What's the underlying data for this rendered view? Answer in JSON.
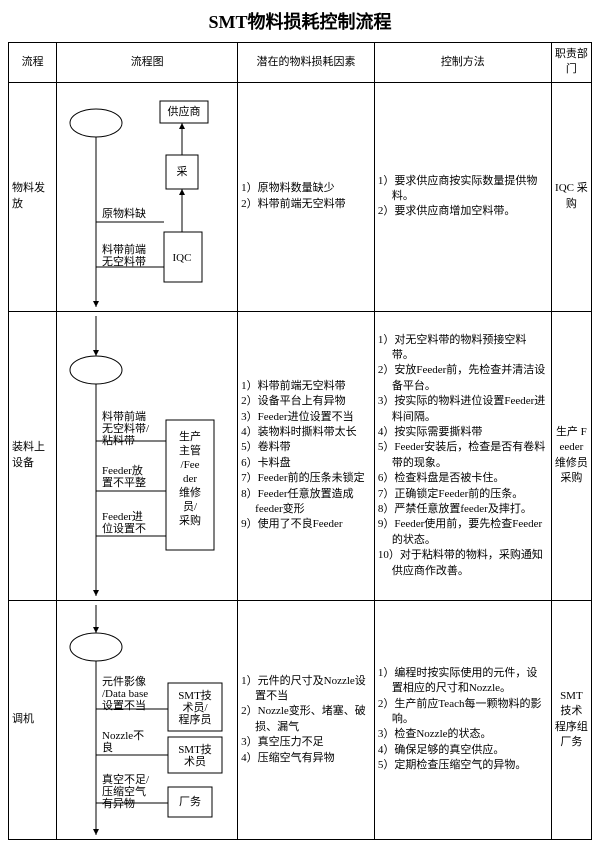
{
  "document": {
    "title": "SMT物料损耗控制流程",
    "columns": [
      "流程",
      "流程图",
      "潜在的物料损耗因素",
      "控制方法",
      "职责部门"
    ],
    "rows": [
      {
        "process": "物料发放",
        "factors": [
          "1）原物料数量缺少",
          "2）料带前端无空料带"
        ],
        "controls": [
          "1）要求供应商按实际数量提供物料。",
          "2）要求供应商增加空料带。"
        ],
        "dept": "IQC 采购",
        "flow": {
          "boxes": {
            "supplier": "供应商",
            "buy": "采",
            "iqc": "IQC"
          },
          "labels": {
            "missing": "原物料缺",
            "noempty": "料带前端无空料带"
          }
        }
      },
      {
        "process": "装料上设备",
        "factors": [
          "1）料带前端无空料带",
          "2）设备平台上有异物",
          "3）Feeder进位设置不当",
          "4）装物料时撕料带太长",
          "5）卷料带",
          "6）卡料盘",
          "7）Feeder前的压条未锁定",
          "8）Feeder任意放置造成feeder变形",
          "9）使用了不良Feeder"
        ],
        "controls": [
          "1）对无空料带的物料预接空料带。",
          "2）安放Feeder前，先检查并清洁设备平台。",
          "3）按实际的物料进位设置Feeder进料间隔。",
          "4）按实际需要撕料带",
          "5）Feeder安装后，检查是否有卷料带的现象。",
          "6）检查料盘是否被卡住。",
          "7）正确锁定Feeder前的压条。",
          "8）严禁任意放置feeder及摔打。",
          "9）Feeder使用前，要先检查Feeder的状态。",
          "10）对于粘料带的物料，采购通知供应商作改善。"
        ],
        "dept": "生产 Feeder维修员 采购",
        "flow": {
          "boxes": {
            "role": "生产主管/Feeder维修员/采购"
          },
          "labels": {
            "a": "料带前端无空料带/粘料带",
            "b": "Feeder放置不平整",
            "c": "Feeder进位设置不"
          }
        }
      },
      {
        "process": "调机",
        "factors": [
          "1）元件的尺寸及Nozzle设置不当",
          "2）Nozzle变形、堵塞、破损、漏气",
          "3）真空压力不足",
          "4）压缩空气有异物"
        ],
        "controls": [
          "1）编程时按实际使用的元件，设置相应的尺寸和Nozzle。",
          "2）生产前应Teach每一颗物料的影响。",
          "3）检查Nozzle的状态。",
          "4）确保足够的真空供应。",
          "5）定期检查压缩空气的异物。"
        ],
        "dept": "SMT技术 程序组 厂务",
        "flow": {
          "boxes": {
            "r1": "SMT技术员/程序员",
            "r2": "SMT技术员",
            "r3": "厂务"
          },
          "labels": {
            "a": "元件影像/Data base设置不当",
            "b": "Nozzle不良",
            "c": "真空不足/压缩空气有异物"
          }
        }
      }
    ],
    "colors": {
      "stroke": "#000000",
      "bg": "#ffffff"
    }
  }
}
